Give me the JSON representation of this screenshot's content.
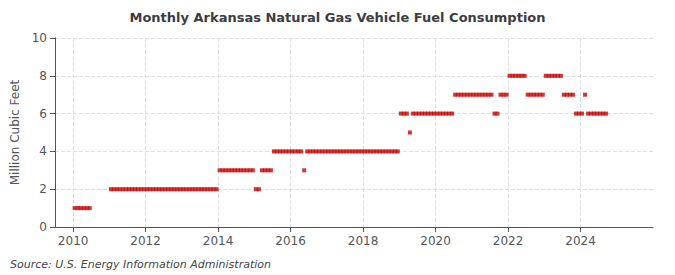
{
  "chart_data": {
    "type": "scatter",
    "title": "Monthly Arkansas Natural Gas Vehicle Fuel Consumption",
    "ylabel": "Million Cubic Feet",
    "annotation": "Source: U.S. Energy Information Administration",
    "color": "#cc0000",
    "marker": "square",
    "grid": true,
    "xlim": [
      2009.5,
      2026.0
    ],
    "xticks": [
      2010,
      2012,
      2014,
      2016,
      2018,
      2020,
      2022,
      2024
    ],
    "ylim": [
      0,
      10
    ],
    "yticks": [
      0,
      2,
      4,
      6,
      8,
      10
    ],
    "x": [
      2010.041667,
      2010.125,
      2010.208333,
      2010.291667,
      2010.375,
      2010.458333,
      2011.041667,
      2011.125,
      2011.208333,
      2011.291667,
      2011.375,
      2011.458333,
      2011.541667,
      2011.625,
      2011.708333,
      2011.791667,
      2011.875,
      2011.958333,
      2012.041667,
      2012.125,
      2012.208333,
      2012.291667,
      2012.375,
      2012.458333,
      2012.541667,
      2012.625,
      2012.708333,
      2012.791667,
      2012.875,
      2012.958333,
      2013.041667,
      2013.125,
      2013.208333,
      2013.291667,
      2013.375,
      2013.458333,
      2013.541667,
      2013.625,
      2013.708333,
      2013.791667,
      2013.875,
      2013.958333,
      2014.041667,
      2014.125,
      2014.208333,
      2014.291667,
      2014.375,
      2014.458333,
      2014.541667,
      2014.625,
      2014.708333,
      2014.791667,
      2014.875,
      2014.958333,
      2015.041667,
      2015.125,
      2015.208333,
      2015.291667,
      2015.375,
      2015.458333,
      2015.541667,
      2015.625,
      2015.708333,
      2015.791667,
      2015.875,
      2015.958333,
      2016.041667,
      2016.125,
      2016.208333,
      2016.291667,
      2016.375,
      2016.458333,
      2016.541667,
      2016.625,
      2016.708333,
      2016.791667,
      2016.875,
      2016.958333,
      2017.041667,
      2017.125,
      2017.208333,
      2017.291667,
      2017.375,
      2017.458333,
      2017.541667,
      2017.625,
      2017.708333,
      2017.791667,
      2017.875,
      2017.958333,
      2018.041667,
      2018.125,
      2018.208333,
      2018.291667,
      2018.375,
      2018.458333,
      2018.541667,
      2018.625,
      2018.708333,
      2018.791667,
      2018.875,
      2018.958333,
      2019.041667,
      2019.125,
      2019.208333,
      2019.291667,
      2019.375,
      2019.458333,
      2019.541667,
      2019.625,
      2019.708333,
      2019.791667,
      2019.875,
      2019.958333,
      2020.041667,
      2020.125,
      2020.208333,
      2020.291667,
      2020.375,
      2020.458333,
      2020.541667,
      2020.625,
      2020.708333,
      2020.791667,
      2020.875,
      2020.958333,
      2021.041667,
      2021.125,
      2021.208333,
      2021.291667,
      2021.375,
      2021.458333,
      2021.541667,
      2021.625,
      2021.708333,
      2021.791667,
      2021.875,
      2021.958333,
      2022.041667,
      2022.125,
      2022.208333,
      2022.291667,
      2022.375,
      2022.458333,
      2022.541667,
      2022.625,
      2022.708333,
      2022.791667,
      2022.875,
      2022.958333,
      2023.041667,
      2023.125,
      2023.208333,
      2023.291667,
      2023.375,
      2023.458333,
      2023.541667,
      2023.625,
      2023.708333,
      2023.791667,
      2023.875,
      2023.958333,
      2024.041667,
      2024.125,
      2024.208333,
      2024.291667,
      2024.375,
      2024.458333,
      2024.541667,
      2024.625,
      2024.708333
    ],
    "values": [
      1,
      1,
      1,
      1,
      1,
      1,
      2,
      2,
      2,
      2,
      2,
      2,
      2,
      2,
      2,
      2,
      2,
      2,
      2,
      2,
      2,
      2,
      2,
      2,
      2,
      2,
      2,
      2,
      2,
      2,
      2,
      2,
      2,
      2,
      2,
      2,
      2,
      2,
      2,
      2,
      2,
      2,
      3,
      3,
      3,
      3,
      3,
      3,
      3,
      3,
      3,
      3,
      3,
      3,
      2,
      2,
      3,
      3,
      3,
      3,
      4,
      4,
      4,
      4,
      4,
      4,
      4,
      4,
      4,
      4,
      3,
      4,
      4,
      4,
      4,
      4,
      4,
      4,
      4,
      4,
      4,
      4,
      4,
      4,
      4,
      4,
      4,
      4,
      4,
      4,
      4,
      4,
      4,
      4,
      4,
      4,
      4,
      4,
      4,
      4,
      4,
      4,
      6,
      6,
      6,
      5,
      6,
      6,
      6,
      6,
      6,
      6,
      6,
      6,
      6,
      6,
      6,
      6,
      6,
      6,
      7,
      7,
      7,
      7,
      7,
      7,
      7,
      7,
      7,
      7,
      7,
      7,
      7,
      6,
      6,
      7,
      7,
      7,
      8,
      8,
      8,
      8,
      8,
      8,
      7,
      7,
      7,
      7,
      7,
      7,
      8,
      8,
      8,
      8,
      8,
      8,
      7,
      7,
      7,
      7,
      6,
      6,
      6,
      7,
      6,
      6,
      6,
      6,
      6,
      6,
      6
    ]
  }
}
